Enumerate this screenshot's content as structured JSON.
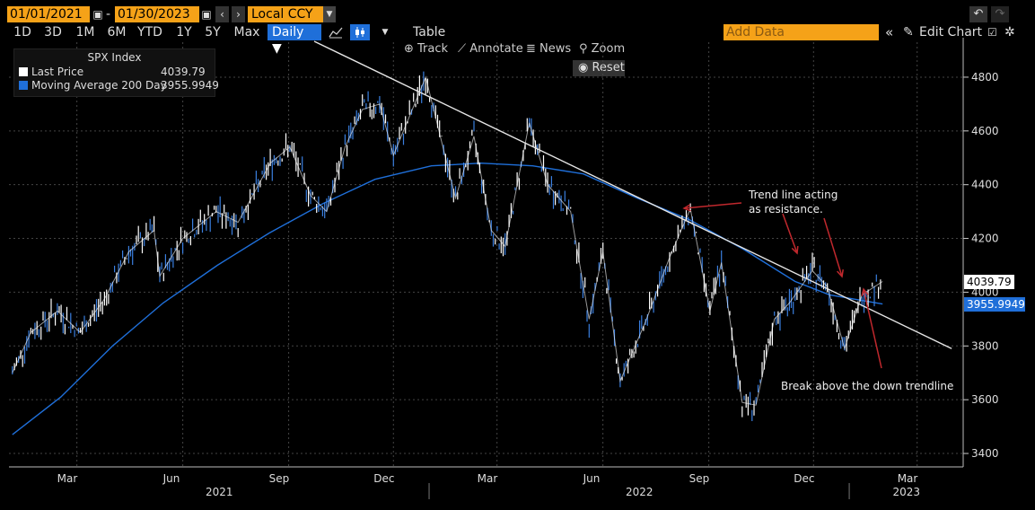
{
  "toolbar": {
    "start_date": "01/01/2021",
    "end_date": "01/30/2023",
    "dash": "-",
    "currency": "Local CCY",
    "periods": [
      "1D",
      "3D",
      "1M",
      "6M",
      "YTD",
      "1Y",
      "5Y",
      "Max"
    ],
    "frequency": "Daily ▼",
    "table_label": "Table",
    "add_data_placeholder": "Add Data",
    "edit_chart_label": "Edit Chart",
    "track_label": "Track",
    "annotate_label": "Annotate",
    "news_label": "News",
    "zoom_label": "Zoom",
    "reset_label": "Reset"
  },
  "legend": {
    "title": "SPX Index",
    "items": [
      {
        "label": "Last Price",
        "value": "4039.79",
        "color": "#ffffff"
      },
      {
        "label": "Moving Average 200 Day",
        "value": "3955.9949",
        "color": "#1f6fd9"
      }
    ]
  },
  "chart_data": {
    "type": "line",
    "title": "SPX Index",
    "x_ticks": [
      "Mar",
      "Jun",
      "Sep",
      "Dec",
      "Mar",
      "Jun",
      "Sep",
      "Dec",
      "Mar"
    ],
    "year_labels": [
      "2021",
      "2022",
      "2023"
    ],
    "y_ticks": [
      3400,
      3600,
      3800,
      4000,
      4200,
      4400,
      4600,
      4800
    ],
    "ylim": [
      3350,
      4880
    ],
    "series": [
      {
        "name": "Last Price",
        "color": "#ffffff",
        "x": [
          "2021-01-04",
          "2021-01-20",
          "2021-02-12",
          "2021-03-04",
          "2021-03-25",
          "2021-04-15",
          "2021-05-07",
          "2021-05-12",
          "2021-06-01",
          "2021-06-30",
          "2021-07-19",
          "2021-08-16",
          "2021-09-02",
          "2021-09-20",
          "2021-10-04",
          "2021-10-20",
          "2021-11-04",
          "2021-11-19",
          "2021-12-01",
          "2021-12-29",
          "2022-01-24",
          "2022-02-09",
          "2022-02-24",
          "2022-03-08",
          "2022-03-29",
          "2022-04-14",
          "2022-05-04",
          "2022-05-20",
          "2022-06-01",
          "2022-06-16",
          "2022-07-08",
          "2022-07-29",
          "2022-08-16",
          "2022-09-02",
          "2022-09-12",
          "2022-09-30",
          "2022-10-12",
          "2022-10-28",
          "2022-11-10",
          "2022-11-30",
          "2022-12-13",
          "2022-12-28",
          "2023-01-12",
          "2023-01-30"
        ],
        "y": [
          3700,
          3850,
          3930,
          3850,
          3975,
          4150,
          4230,
          4060,
          4200,
          4300,
          4260,
          4480,
          4540,
          4360,
          4300,
          4540,
          4680,
          4700,
          4510,
          4800,
          4350,
          4580,
          4230,
          4170,
          4630,
          4400,
          4300,
          3900,
          4150,
          3670,
          3890,
          4130,
          4310,
          3930,
          4110,
          3590,
          3580,
          3900,
          3960,
          4080,
          4020,
          3790,
          3990,
          4039.79
        ]
      },
      {
        "name": "Moving Average 200 Day",
        "color": "#1f6fd9",
        "x": [
          "2021-01-04",
          "2021-02-15",
          "2021-04-01",
          "2021-05-15",
          "2021-07-01",
          "2021-08-15",
          "2021-10-01",
          "2021-11-15",
          "2022-01-03",
          "2022-02-15",
          "2022-04-01",
          "2022-05-15",
          "2022-07-01",
          "2022-08-15",
          "2022-10-01",
          "2022-11-15",
          "2022-12-15",
          "2023-01-30"
        ],
        "y": [
          3470,
          3610,
          3800,
          3960,
          4100,
          4220,
          4330,
          4420,
          4470,
          4480,
          4470,
          4440,
          4350,
          4270,
          4160,
          4040,
          3990,
          3955.9949
        ]
      }
    ],
    "annotations": [
      {
        "text": "Trend line acting",
        "text2": "as resistance."
      },
      {
        "text": "Break above the down trendline"
      }
    ],
    "trendline": {
      "x": [
        "2021-12-29",
        "2023-03-31"
      ],
      "y": [
        4820,
        3790
      ]
    },
    "last_price_tag": "4039.79",
    "ma_tag": "3955.9949",
    "grid": true,
    "legend_position": "top-left"
  }
}
